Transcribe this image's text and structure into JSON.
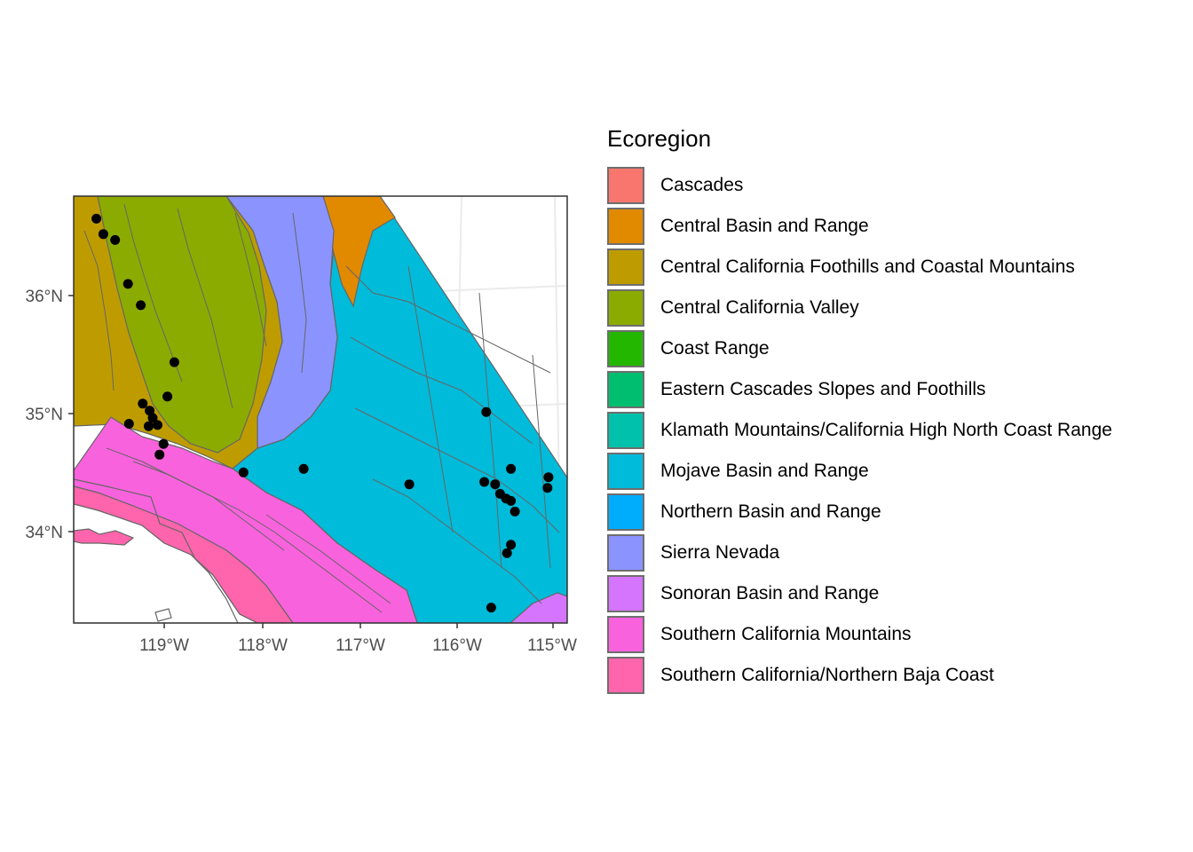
{
  "chart_data": {
    "type": "map",
    "x_ticks": [
      "119°W",
      "118°W",
      "117°W",
      "116°W",
      "115°W"
    ],
    "y_ticks": [
      "36°N",
      "35°N",
      "34°N"
    ],
    "xlim": [
      -119.9,
      -114.9
    ],
    "ylim": [
      33.25,
      36.85
    ],
    "grid": true,
    "legend_position": "right",
    "legend": {
      "title": "Ecoregion",
      "entries": [
        {
          "label": "Cascades",
          "color": "#F8766D"
        },
        {
          "label": "Central Basin and Range",
          "color": "#E18A00"
        },
        {
          "label": "Central California Foothills and Coastal Mountains",
          "color": "#BE9C00"
        },
        {
          "label": "Central California Valley",
          "color": "#8CAB00"
        },
        {
          "label": "Coast Range",
          "color": "#24B700"
        },
        {
          "label": "Eastern Cascades Slopes and Foothills",
          "color": "#00BE70"
        },
        {
          "label": "Klamath Mountains/California High North Coast Range",
          "color": "#00C1AB"
        },
        {
          "label": "Mojave Basin and Range",
          "color": "#00BBDA"
        },
        {
          "label": "Northern Basin and Range",
          "color": "#00ACFC"
        },
        {
          "label": "Sierra Nevada",
          "color": "#8B93FF"
        },
        {
          "label": "Sonoran Basin and Range",
          "color": "#D575FE"
        },
        {
          "label": "Southern California Mountains",
          "color": "#F962DD"
        },
        {
          "label": "Southern California/Northern Baja Coast",
          "color": "#FF65AC"
        }
      ]
    },
    "points": [
      {
        "lon": -119.67,
        "lat": 36.66
      },
      {
        "lon": -119.6,
        "lat": 36.53
      },
      {
        "lon": -119.48,
        "lat": 36.48
      },
      {
        "lon": -119.35,
        "lat": 36.11
      },
      {
        "lon": -119.22,
        "lat": 35.93
      },
      {
        "lon": -118.88,
        "lat": 35.45
      },
      {
        "lon": -118.95,
        "lat": 35.16
      },
      {
        "lon": -119.2,
        "lat": 35.1
      },
      {
        "lon": -119.13,
        "lat": 35.04
      },
      {
        "lon": -119.1,
        "lat": 34.98
      },
      {
        "lon": -119.05,
        "lat": 34.92
      },
      {
        "lon": -119.14,
        "lat": 34.91
      },
      {
        "lon": -119.34,
        "lat": 34.93
      },
      {
        "lon": -118.99,
        "lat": 34.76
      },
      {
        "lon": -119.03,
        "lat": 34.67
      },
      {
        "lon": -118.18,
        "lat": 34.52
      },
      {
        "lon": -117.57,
        "lat": 34.55
      },
      {
        "lon": -116.5,
        "lat": 34.42
      },
      {
        "lon": -115.72,
        "lat": 35.03
      },
      {
        "lon": -115.74,
        "lat": 34.44
      },
      {
        "lon": -115.63,
        "lat": 34.42
      },
      {
        "lon": -115.58,
        "lat": 34.34
      },
      {
        "lon": -115.52,
        "lat": 34.3
      },
      {
        "lon": -115.47,
        "lat": 34.28
      },
      {
        "lon": -115.43,
        "lat": 34.19
      },
      {
        "lon": -115.47,
        "lat": 34.55
      },
      {
        "lon": -115.09,
        "lat": 34.48
      },
      {
        "lon": -115.1,
        "lat": 34.39
      },
      {
        "lon": -115.47,
        "lat": 33.91
      },
      {
        "lon": -115.51,
        "lat": 33.84
      },
      {
        "lon": -115.67,
        "lat": 33.38
      }
    ]
  }
}
